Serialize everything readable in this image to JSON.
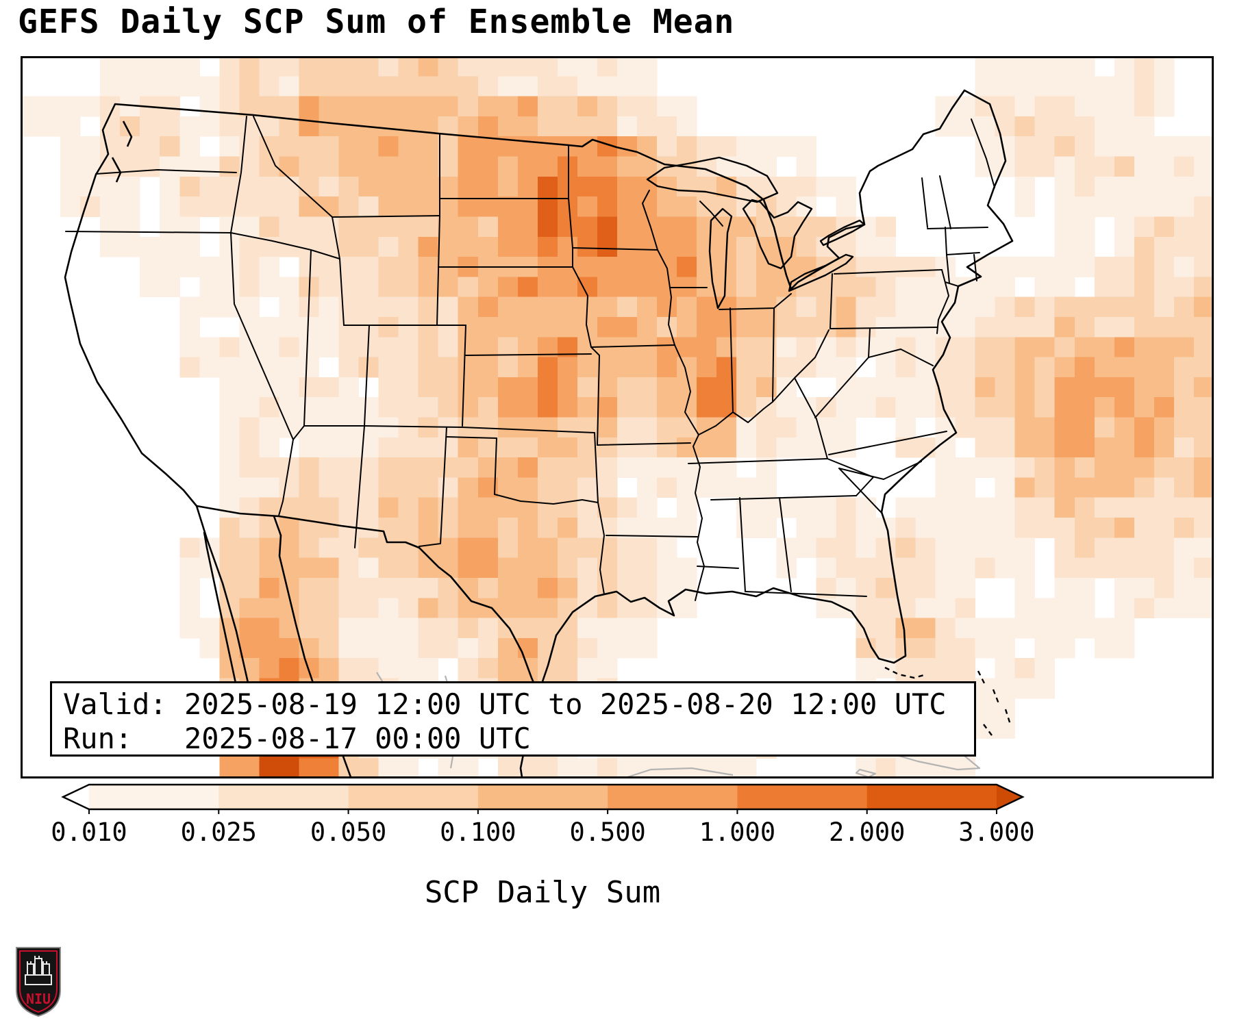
{
  "title": "GEFS Daily SCP Sum of Ensemble Mean",
  "info_box": {
    "line1": "Valid: 2025-08-19 12:00 UTC to 2025-08-20 12:00 UTC",
    "line2": "Run:   2025-08-17 00:00 UTC"
  },
  "colorbar": {
    "label": "SCP Daily Sum",
    "ticks": [
      "0.010",
      "0.025",
      "0.050",
      "0.100",
      "0.500",
      "1.000",
      "2.000",
      "3.000"
    ],
    "segment_colors": [
      "#fdf3e8",
      "#fce4cc",
      "#fbd2ab",
      "#f9bb84",
      "#f59e5c",
      "#ed7b32",
      "#dd5c11"
    ],
    "under_color": "#ffffff",
    "over_color": "#ce4b06"
  },
  "logo": {
    "text": "NIU",
    "accent_color": "#c8102e",
    "background": "#141414"
  },
  "chart_data": {
    "type": "heatmap",
    "title": "GEFS Daily SCP Sum of Ensemble Mean",
    "colorbar_label": "SCP Daily Sum",
    "levels": [
      0.01,
      0.025,
      0.05,
      0.1,
      0.5,
      1.0,
      2.0,
      3.0
    ],
    "valid": "2025-08-19 12:00 UTC to 2025-08-20 12:00 UTC",
    "run": "2025-08-17 00:00 UTC",
    "palette": [
      "",
      "#fcefe3",
      "#fbe3cd",
      "#fad2ae",
      "#f8bd89",
      "#f5a263",
      "#ee8038",
      "#e0601a",
      "#cf4d08"
    ],
    "grid": {
      "cols": 30,
      "rows": 18,
      "values": [
        "001112233332221100000000111110",
        "112212344444433210000001222110",
        "012212334445555432110000122211",
        "011122233445566543221000011111",
        "001111223344566554432100001122",
        "000111122344555554443211111222",
        "000011112234444445433211223333",
        "000011112234454455321112344443",
        "000001111234554346311112345543",
        "000001111223443234211011245443",
        "000001222334432111100001134433",
        "000002332344432110111111123322",
        "000013432345433210012221112221",
        "000013432234442210001221011111",
        "000014531122431100000232111100",
        "000004642112431000000122110000",
        "000005752112321000000111100000",
        "000005863111211111100111000000"
      ]
    }
  }
}
